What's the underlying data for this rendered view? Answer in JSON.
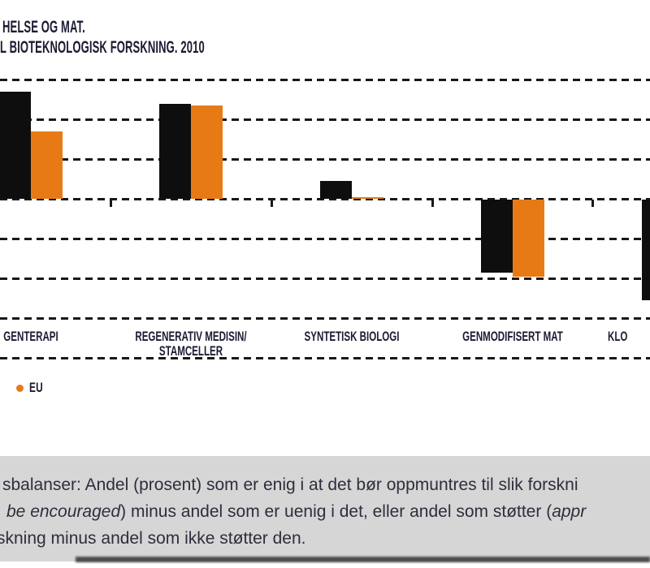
{
  "title": {
    "line1": "HELSE OG MAT.",
    "line2": "L BIOTEKNOLOGISK FORSKNING. 2010"
  },
  "legend": {
    "items": [
      {
        "label": "EU",
        "color": "#e87a16"
      }
    ]
  },
  "chart_data": {
    "type": "bar",
    "title": "HELSE OG MAT. | L BIOTEKNOLOGISK FORSKNING. 2010",
    "categories": [
      {
        "lines": [
          "GENTERAPI"
        ]
      },
      {
        "lines": [
          "REGENERATIV MEDISIN/",
          "STAMCELLER"
        ]
      },
      {
        "lines": [
          "SYNTETISK BIOLOGI"
        ]
      },
      {
        "lines": [
          "GENMODIFISERT MAT"
        ]
      },
      {
        "lines": [
          "KLO"
        ],
        "clipped": true
      }
    ],
    "series": [
      {
        "name": "",
        "color": "#0e0e0e",
        "values": [
          54,
          48,
          9,
          -37,
          -51
        ]
      },
      {
        "name": "EU",
        "color": "#e87a16",
        "values": [
          34,
          47,
          1,
          -39,
          null
        ]
      }
    ],
    "ylim": [
      -80,
      60
    ],
    "gridline_step": 20,
    "grid": "dashed-horizontal",
    "xlabel": "",
    "ylabel": "",
    "legend_position": "bottom-left",
    "cropped_edges": "left and right (y-axis labels, first legend item and last EU bar not visible)"
  },
  "caption": {
    "line1": "sbalanser: Andel (prosent) som er enig i at det bør oppmuntres til slik forskni",
    "line2_segments": [
      {
        "text": "be encouraged",
        "italic": true
      },
      {
        "text": ") minus andel som er uenig i det, eller andel som støtter (",
        "italic": false
      },
      {
        "text": "appr",
        "italic": true
      }
    ],
    "line3": "skning minus andel som ikke støtter den."
  },
  "colors": {
    "bar_black": "#0e0e0e",
    "bar_orange": "#e87a16",
    "grid": "#181818",
    "label_text": "#1b1b33",
    "caption_bg": "#d6d6d6",
    "caption_text": "#2e2e3c"
  }
}
